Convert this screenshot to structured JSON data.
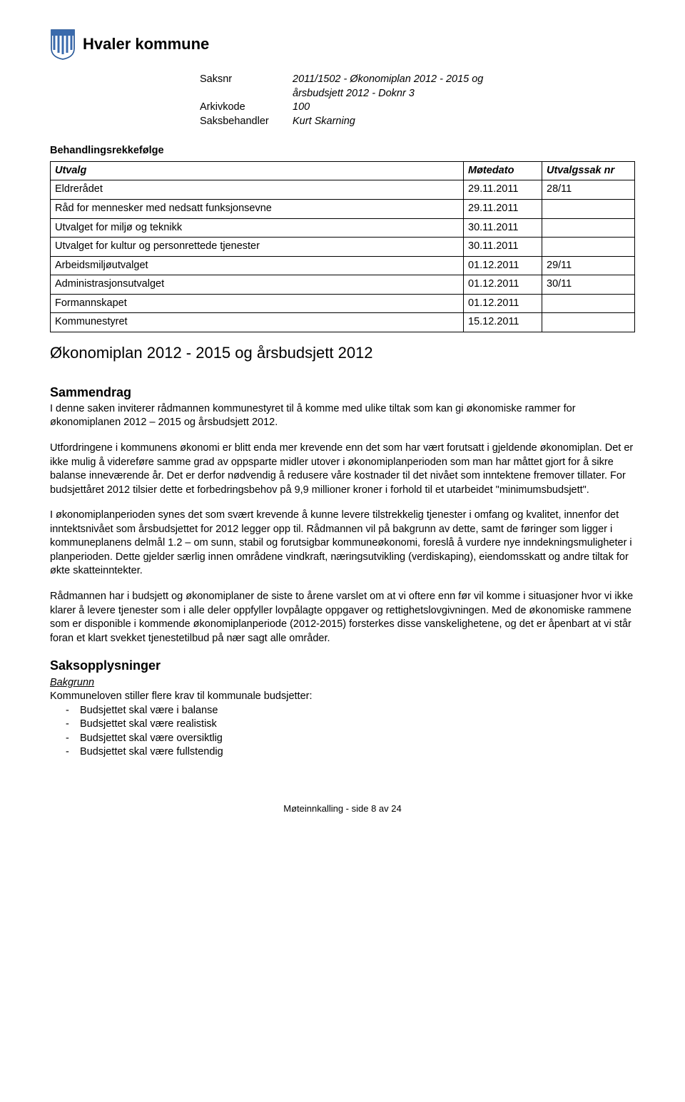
{
  "header": {
    "org_name": "Hvaler kommune"
  },
  "meta": {
    "saksnr_label": "Saksnr",
    "saksnr_value": "2011/1502 - Økonomiplan 2012 - 2015 og årsbudsjett 2012 - Doknr 3",
    "arkivkode_label": "Arkivkode",
    "arkivkode_value": "100",
    "saksbehandler_label": "Saksbehandler",
    "saksbehandler_value": "Kurt Skarning"
  },
  "processing": {
    "heading": "Behandlingsrekkefølge",
    "columns": [
      "Utvalg",
      "Møtedato",
      "Utvalgssak nr"
    ],
    "rows": [
      [
        "Eldrerådet",
        "29.11.2011",
        "28/11"
      ],
      [
        "Råd for mennesker med nedsatt funksjonsevne",
        "29.11.2011",
        ""
      ],
      [
        "Utvalget for miljø og teknikk",
        "30.11.2011",
        ""
      ],
      [
        "Utvalget for kultur og personrettede tjenester",
        "30.11.2011",
        ""
      ],
      [
        "Arbeidsmiljøutvalget",
        "01.12.2011",
        "29/11"
      ],
      [
        "Administrasjonsutvalget",
        "01.12.2011",
        "30/11"
      ],
      [
        "Formannskapet",
        "01.12.2011",
        ""
      ],
      [
        "Kommunestyret",
        "15.12.2011",
        ""
      ]
    ]
  },
  "document_title": "Økonomiplan 2012 - 2015 og årsbudsjett 2012",
  "summary": {
    "heading": "Sammendrag",
    "p1": "I denne saken inviterer rådmannen kommunestyret til å komme med ulike tiltak som kan gi økonomiske rammer for økonomiplanen 2012 – 2015 og årsbudsjett 2012.",
    "p2": "Utfordringene i kommunens økonomi er blitt enda mer krevende enn det som har vært forutsatt i gjeldende økonomiplan. Det er ikke mulig å videreføre samme grad av oppsparte midler utover i økonomiplanperioden som man har måttet gjort for å sikre balanse inneværende år. Det er derfor nødvendig å redusere våre kostnader til det nivået som inntektene fremover tillater. For budsjettåret 2012 tilsier dette et forbedringsbehov på 9,9 millioner kroner i forhold til et utarbeidet \"minimumsbudsjett\".",
    "p3": "I økonomiplanperioden synes det som svært krevende å kunne levere tilstrekkelig tjenester i omfang og kvalitet, innenfor det inntektsnivået som årsbudsjettet for 2012 legger opp til. Rådmannen vil på bakgrunn av dette, samt de føringer som ligger i kommuneplanens delmål 1.2 – om sunn, stabil og forutsigbar kommuneøkonomi, foreslå å vurdere nye inndekningsmuligheter i planperioden. Dette gjelder særlig innen områdene vindkraft, næringsutvikling (verdiskaping), eiendomsskatt og andre tiltak for økte skatteinntekter.",
    "p4": "Rådmannen har i budsjett og økonomiplaner de siste to årene varslet om at vi oftere enn før vil komme i situasjoner hvor vi ikke klarer å levere tjenester som i alle deler oppfyller lovpålagte oppgaver og rettighetslovgivningen. Med de økonomiske rammene som er disponible i kommende økonomiplanperiode (2012-2015) forsterkes disse vanskelighetene, og det er åpenbart at vi står foran et klart svekket tjenestetilbud på nær sagt alle områder."
  },
  "case_info": {
    "heading": "Saksopplysninger",
    "subheading": "Bakgrunn",
    "intro": "Kommuneloven stiller flere krav til kommunale budsjetter:",
    "bullets": [
      "Budsjettet skal være i balanse",
      "Budsjettet skal være realistisk",
      "Budsjettet skal være oversiktlig",
      "Budsjettet skal være fullstendig"
    ]
  },
  "footer": "Møteinnkalling - side 8 av 24"
}
